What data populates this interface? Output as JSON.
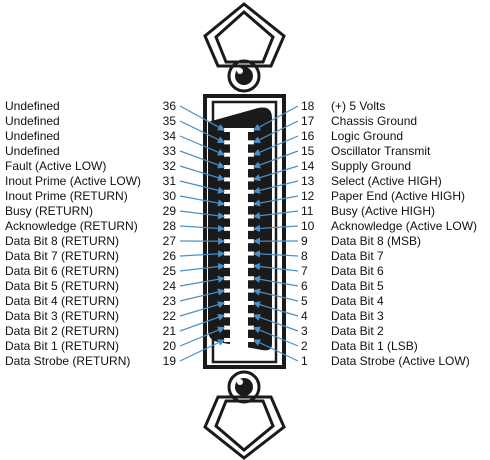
{
  "title": "",
  "pins_left": [
    {
      "pin": "36",
      "label": "Undefined"
    },
    {
      "pin": "35",
      "label": "Undefined"
    },
    {
      "pin": "34",
      "label": "Undefined"
    },
    {
      "pin": "33",
      "label": "Undefined"
    },
    {
      "pin": "32",
      "label": "Fault (Active LOW)"
    },
    {
      "pin": "31",
      "label": "Inout Prime (Active LOW)"
    },
    {
      "pin": "30",
      "label": "Inout Prime (RETURN)"
    },
    {
      "pin": "29",
      "label": "Busy (RETURN)"
    },
    {
      "pin": "28",
      "label": "Acknowledge (RETURN)"
    },
    {
      "pin": "27",
      "label": "Data Bit 8 (RETURN)"
    },
    {
      "pin": "26",
      "label": "Data Bit 7 (RETURN)"
    },
    {
      "pin": "25",
      "label": "Data Bit 6 (RETURN)"
    },
    {
      "pin": "24",
      "label": "Data Bit 5 (RETURN)"
    },
    {
      "pin": "23",
      "label": "Data Bit 4 (RETURN)"
    },
    {
      "pin": "22",
      "label": "Data Bit 3 (RETURN)"
    },
    {
      "pin": "21",
      "label": "Data Bit 2 (RETURN)"
    },
    {
      "pin": "20",
      "label": "Data Bit 1 (RETURN)"
    },
    {
      "pin": "19",
      "label": "Data Strobe (RETURN)"
    }
  ],
  "pins_right": [
    {
      "pin": "18",
      "label": "(+) 5 Volts"
    },
    {
      "pin": "17",
      "label": "Chassis Ground"
    },
    {
      "pin": "16",
      "label": "Logic Ground"
    },
    {
      "pin": "15",
      "label": "Oscillator Transmit"
    },
    {
      "pin": "14",
      "label": "Supply Ground"
    },
    {
      "pin": "13",
      "label": "Select (Active HIGH)"
    },
    {
      "pin": "12",
      "label": "Paper End (Active HIGH)"
    },
    {
      "pin": "11",
      "label": "Busy (Active HIGH)"
    },
    {
      "pin": "10",
      "label": "Acknowledge (Active LOW)"
    },
    {
      "pin": "9",
      "label": "Data Bit 8 (MSB)"
    },
    {
      "pin": "8",
      "label": "Data Bit 7"
    },
    {
      "pin": "7",
      "label": "Data Bit 6"
    },
    {
      "pin": "6",
      "label": "Data Bit 5"
    },
    {
      "pin": "5",
      "label": "Data Bit 4"
    },
    {
      "pin": "4",
      "label": "Data Bit 3"
    },
    {
      "pin": "3",
      "label": "Data Bit 2"
    },
    {
      "pin": "2",
      "label": "Data Bit 1 (LSB)"
    },
    {
      "pin": "1",
      "label": "Data Strobe (Active LOW)"
    }
  ],
  "colors": {
    "arrow": "#4a90c8",
    "connector_body": "#1a1a1a",
    "text": "#111111"
  }
}
